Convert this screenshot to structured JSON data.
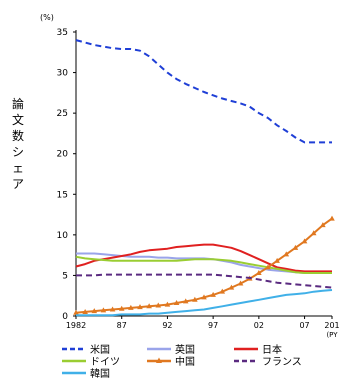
{
  "chart_data": {
    "type": "line",
    "y_unit": "(%)",
    "ylabel": "論文数シェア",
    "ylim": [
      0,
      35
    ],
    "yticks": [
      0,
      5,
      10,
      15,
      20,
      25,
      30,
      35
    ],
    "x": [
      1982,
      1983,
      1984,
      1985,
      1986,
      1987,
      1988,
      1989,
      1990,
      1991,
      1992,
      1993,
      1994,
      1995,
      1996,
      1997,
      1998,
      1999,
      2000,
      2001,
      2002,
      2003,
      2004,
      2005,
      2006,
      2007,
      2008,
      2009,
      2010
    ],
    "xtick_labels": [
      "1982",
      "87",
      "92",
      "97",
      "02",
      "07",
      "201"
    ],
    "xtick_values": [
      1982,
      1987,
      1992,
      1997,
      2002,
      2007,
      2010
    ],
    "x_unit_label": "(PY",
    "grid": false,
    "legend_position": "bottom",
    "series": [
      {
        "name": "米国",
        "color": "#1f3fd6",
        "style": "dashed",
        "values": [
          34.0,
          33.7,
          33.4,
          33.2,
          33.0,
          32.9,
          32.9,
          32.7,
          32.0,
          31.0,
          30.0,
          29.2,
          28.6,
          28.1,
          27.6,
          27.2,
          26.8,
          26.5,
          26.2,
          25.8,
          25.0,
          24.4,
          23.5,
          22.8,
          22.0,
          21.4,
          21.4,
          21.4,
          21.4
        ]
      },
      {
        "name": "英国",
        "color": "#9aa4ea",
        "style": "solid",
        "values": [
          7.7,
          7.7,
          7.7,
          7.6,
          7.5,
          7.4,
          7.3,
          7.3,
          7.3,
          7.2,
          7.2,
          7.1,
          7.1,
          7.1,
          7.1,
          7.0,
          6.8,
          6.6,
          6.3,
          6.1,
          5.9,
          5.7,
          5.6,
          5.5,
          5.4,
          5.3,
          5.3,
          5.3,
          5.3
        ]
      },
      {
        "name": "日本",
        "color": "#e02020",
        "style": "solid",
        "values": [
          6.1,
          6.4,
          6.8,
          7.0,
          7.2,
          7.4,
          7.6,
          7.9,
          8.1,
          8.2,
          8.3,
          8.5,
          8.6,
          8.7,
          8.8,
          8.8,
          8.6,
          8.4,
          8.0,
          7.5,
          7.0,
          6.5,
          6.0,
          5.8,
          5.6,
          5.5,
          5.5,
          5.5,
          5.5
        ]
      },
      {
        "name": "ドイツ",
        "color": "#9acd32",
        "style": "solid",
        "values": [
          7.3,
          7.1,
          7.0,
          6.9,
          6.8,
          6.8,
          6.8,
          6.8,
          6.8,
          6.8,
          6.8,
          6.8,
          6.9,
          7.0,
          7.0,
          7.0,
          6.9,
          6.8,
          6.6,
          6.4,
          6.2,
          6.0,
          5.8,
          5.6,
          5.4,
          5.3,
          5.3,
          5.3,
          5.3
        ]
      },
      {
        "name": "中国",
        "color": "#e07820",
        "style": "solid-triangle",
        "values": [
          0.4,
          0.5,
          0.6,
          0.7,
          0.8,
          0.9,
          1.0,
          1.1,
          1.2,
          1.3,
          1.4,
          1.6,
          1.8,
          2.0,
          2.3,
          2.6,
          3.0,
          3.5,
          4.0,
          4.6,
          5.3,
          6.0,
          6.8,
          7.6,
          8.4,
          9.2,
          10.2,
          11.2,
          12.0
        ]
      },
      {
        "name": "フランス",
        "color": "#5a2a80",
        "style": "dashed",
        "values": [
          5.0,
          5.0,
          5.0,
          5.1,
          5.1,
          5.1,
          5.1,
          5.1,
          5.1,
          5.1,
          5.1,
          5.1,
          5.1,
          5.1,
          5.1,
          5.1,
          5.0,
          4.9,
          4.8,
          4.7,
          4.5,
          4.3,
          4.1,
          4.0,
          3.9,
          3.8,
          3.7,
          3.6,
          3.5
        ]
      },
      {
        "name": "韓国",
        "color": "#40b0e8",
        "style": "solid",
        "values": [
          0.1,
          0.1,
          0.1,
          0.1,
          0.1,
          0.2,
          0.2,
          0.2,
          0.3,
          0.3,
          0.4,
          0.5,
          0.6,
          0.7,
          0.8,
          1.0,
          1.2,
          1.4,
          1.6,
          1.8,
          2.0,
          2.2,
          2.4,
          2.6,
          2.7,
          2.8,
          3.0,
          3.1,
          3.2
        ]
      }
    ]
  }
}
